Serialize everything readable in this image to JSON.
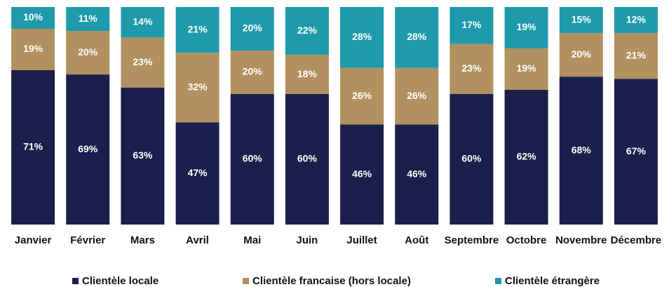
{
  "chart_data": {
    "type": "stacked_bar",
    "categories": [
      "Janvier",
      "Février",
      "Mars",
      "Avril",
      "Mai",
      "Juin",
      "Juillet",
      "Août",
      "Septembre",
      "Octobre",
      "Novembre",
      "Décembre"
    ],
    "series": [
      {
        "name": "Clientèle locale",
        "color": "#1b1f4b",
        "values": [
          71,
          69,
          63,
          47,
          60,
          60,
          46,
          46,
          60,
          62,
          68,
          67
        ],
        "value_labels": [
          "71%",
          "69%",
          "63%",
          "47%",
          "60%",
          "60%",
          "46%",
          "46%",
          "60%",
          "62%",
          "68%",
          "67%"
        ]
      },
      {
        "name": "Clientèle francaise (hors locale)",
        "color": "#b0915f",
        "values": [
          19,
          20,
          23,
          32,
          20,
          18,
          26,
          26,
          23,
          19,
          20,
          21
        ],
        "value_labels": [
          "19%",
          "20%",
          "23%",
          "32%",
          "20%",
          "18%",
          "26%",
          "26%",
          "23%",
          "19%",
          "20%",
          "21%"
        ]
      },
      {
        "name": "Clientèle étrangère",
        "color": "#1f9aab",
        "values": [
          10,
          11,
          14,
          21,
          20,
          22,
          28,
          28,
          17,
          19,
          15,
          12
        ],
        "value_labels": [
          "10%",
          "11%",
          "14%",
          "21%",
          "20%",
          "22%",
          "28%",
          "28%",
          "17%",
          "19%",
          "15%",
          "12%"
        ]
      }
    ],
    "ylim": [
      0,
      100
    ],
    "legend": "bottom"
  }
}
